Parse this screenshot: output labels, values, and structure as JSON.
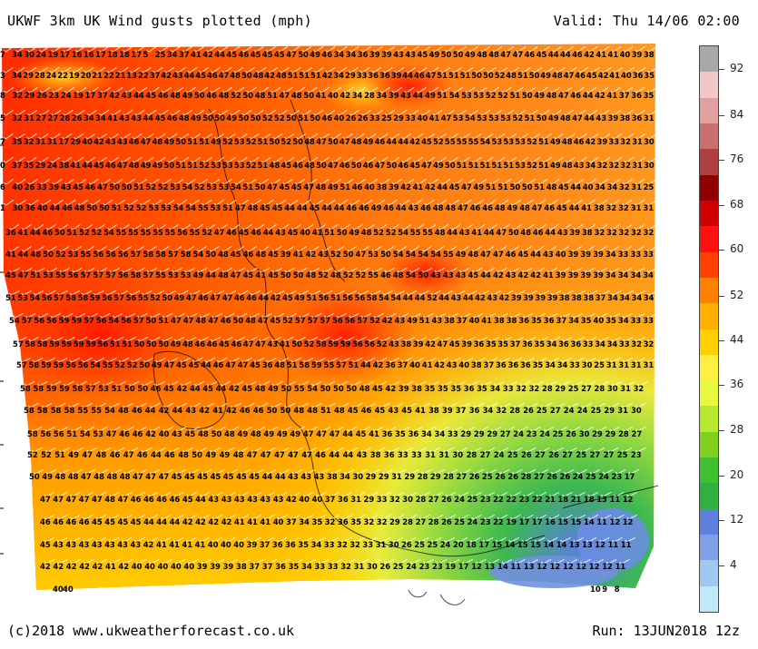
{
  "header": {
    "title": "UKWF 3km UK Wind gusts plotted (mph)",
    "valid": "Valid: Thu 14/06 02:00"
  },
  "footer": {
    "copyright": "(c)2018 www.ukweatherforecast.co.uk",
    "run": "Run: 13JUN2018 12z"
  },
  "legend": {
    "labels": [
      "92",
      "84",
      "76",
      "68",
      "60",
      "52",
      "44",
      "36",
      "28",
      "20",
      "12",
      "4"
    ],
    "colors": [
      "#a8a8a8",
      "#f0c8c8",
      "#e0a0a0",
      "#c87070",
      "#b04040",
      "#900000",
      "#d00000",
      "#ff1010",
      "#ff4000",
      "#ff8000",
      "#ffb000",
      "#ffd000",
      "#fff040",
      "#e8f840",
      "#b8e830",
      "#80d020",
      "#40c030",
      "#30b040",
      "#6080e0",
      "#80a0e8",
      "#a0c8f0",
      "#c0e8f8"
    ]
  },
  "gust_rows": [
    "7 34 30 24 19 17 16 16 17 18 18 17 5 25 34 37 41 42 44 45 46 45 45 45 47 50 49 46 34 34 36 39 39 43 43 45 49 50 50 49 48 48 47 47 46 45 44 44 46 42 41 41 40 39 38",
    "3 34 29 28 24 22 19 20 21 22 21 13 22 37 42 43 44 45 46 47 48 50 48 42 48 51 51 51 42 34 29 33 36 36 39 44 46 47 51 51 51 50 50 52 48 51 50 49 48 47 46 45 42 41 40 36 35",
    "8 32 29 26 23 24 19 17 37 42 43 44 45 46 48 49 50 46 48 52 50 48 51 47 48 50 41 40 42 34 28 34 39 43 44 49 51 54 53 53 52 52 51 50 49 48 47 46 44 42 41 37 36 35",
    "5 32 31 27 27 28 26 34 34 41 43 43 44 45 46 48 49 50 50 49 50 50 52 52 50 51 50 46 40 26 26 33 25 29 33 40 41 47 53 54 53 53 53 52 51 50 49 48 47 44 43 39 38 36 31",
    "7 35 32 31 31 17 29 40 42 43 43 46 47 48 49 50 51 51 49 52 53 52 51 50 52 50 48 47 50 47 48 49 46 44 44 42 45 52 55 55 55 54 53 53 53 52 51 49 48 46 42 39 33 32 31 30",
    "0 37 35 29 24 38 41 44 45 46 47 48 49 49 50 51 51 52 53 53 53 52 51 48 45 46 48 50 47 46 50 46 47 50 46 45 47 49 50 51 51 51 51 51 53 52 51 49 48 43 34 32 32 32 31 30",
    "6 40 26 33 39 43 45 46 47 50 50 51 52 52 53 54 52 53 53 54 51 50 47 45 45 47 48 49 51 46 40 38 39 42 41 42 44 45 47 49 51 51 50 50 51 48 45 44 40 34 34 32 31 25",
    "1 30 36 40 44 46 48 50 50 51 52 52 53 53 54 54 55 53 51 47 48 45 45 44 44 45 44 44 46 46 49 46 44 43 46 48 48 47 46 46 48 49 48 47 46 45 44 41 38 32 32 31 31",
    "36 41 44 46 50 51 52 52 54 55 55 55 55 55 56 55 52 47 46 45 46 44 43 45 40 41 51 50 49 48 52 52 54 55 55 48 44 43 41 44 47 50 48 46 44 43 39 38 32 32 32 32 32",
    "41 44 48 50 52 53 55 56 56 56 57 58 58 57 58 54 50 48 45 46 48 45 39 41 42 43 52 50 47 53 50 54 54 54 54 55 49 48 47 47 46 45 44 43 40 39 39 39 34 33 33 33",
    "45 47 51 53 55 56 57 57 57 56 58 57 55 53 53 49 44 48 47 45 41 45 50 50 48 52 48 52 52 55 46 48 54 50 43 43 43 45 44 42 43 42 42 41 39 39 39 39 34 34 34 34",
    "51 53 54 56 57 58 58 59 56 57 56 55 52 50 49 47 46 47 47 46 46 44 42 45 49 51 56 51 56 56 58 54 54 44 44 52 44 43 44 42 43 42 39 39 39 39 38 38 38 37 34 34 34 34",
    "54 57 56 56 59 59 57 56 54 56 57 50 51 47 47 48 47 46 50 48 47 45 52 57 57 57 56 56 57 52 42 43 49 51 43 38 37 40 41 38 38 36 35 36 37 34 35 40 35 34 33 33",
    "57 58 58 59 59 59 59 56 51 51 50 50 50 49 48 46 46 45 46 47 47 43 41 50 52 58 59 59 56 56 52 43 38 39 42 47 45 39 36 35 35 37 36 35 34 36 36 33 34 34 33 32 32",
    "57 58 59 59 56 56 54 55 52 52 50 49 47 45 45 44 46 47 47 45 36 48 51 58 59 55 57 51 44 42 36 37 40 41 42 43 40 38 37 36 36 36 35 34 34 33 30 25 31 31 31 31",
    "58 58 59 59 58 57 53 51 50 50 46 45 42 44 45 44 42 45 48 49 50 55 54 50 50 50 48 45 42 39 38 35 35 35 36 35 34 33 32 32 28 29 25 27 28 30 31 32",
    "58 58 58 58 55 55 54 48 46 44 42 44 43 42 41 42 46 46 50 50 48 48 51 48 45 46 45 43 45 41 38 39 37 36 34 32 28 26 25 27 24 24 25 29 31 30",
    "58 56 56 51 54 53 47 46 46 42 40 43 45 48 50 48 49 48 49 49 49 47 47 47 44 45 41 36 35 36 34 34 33 29 29 29 27 24 23 24 25 26 30 29 29 28 27",
    "52 52 51 49 47 48 46 47 46 44 46 48 50 49 49 48 47 47 47 47 47 46 44 44 43 38 36 33 33 31 31 30 28 27 24 25 26 27 26 27 25 27 27 25 23",
    "50 49 48 48 47 48 48 48 47 47 47 45 45 45 45 45 45 45 44 44 43 43 43 38 34 30 29 29 31 29 28 29 28 27 26 25 26 26 28 27 26 26 24 25 24 23 17",
    "47 47 47 47 47 48 47 46 46 46 46 45 44 43 43 43 43 43 43 42 40 40 37 36 31 29 33 32 30 28 27 26 24 25 23 22 22 23 22 21 18 21 18 13 11 12",
    "46 46 46 46 45 45 45 45 44 44 44 42 42 42 42 41 41 41 40 37 34 35 32 36 35 32 32 29 28 27 28 26 25 24 23 22 19 17 17 16 15 15 14 11 12 12",
    "45 43 43 43 43 43 43 43 42 41 41 41 41 40 40 40 39 37 36 36 35 34 33 32 32 33 31 30 26 25 25 24 20 18 17 15 14 15 15 14 14 13 13 12 11 11",
    "42 42 42 42 42 41 42 40 40 40 40 40 39 39 39 38 37 37 36 35 34 33 33 32 31 30 26 25 24 23 23 19 17 12 13 14 11 13 12 12 12 12 12 12 11",
    "40 40",
    "10 9 8"
  ]
}
